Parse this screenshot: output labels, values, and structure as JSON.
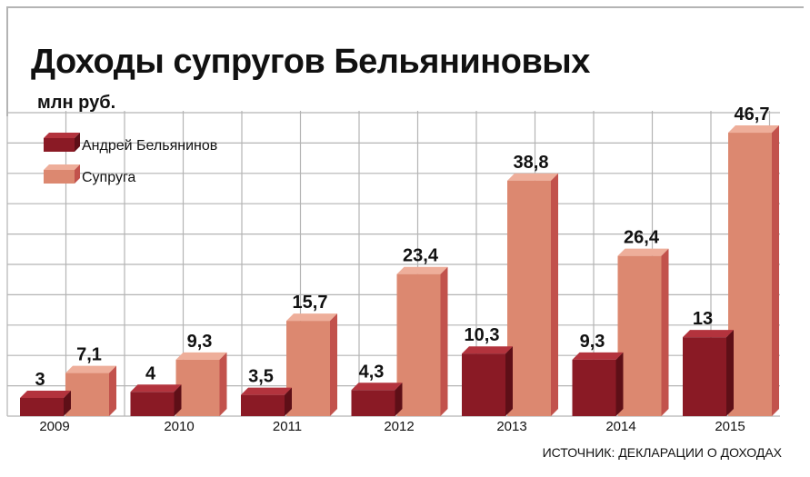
{
  "chart_data": {
    "type": "bar",
    "title": "Доходы супругов Бельяниновых",
    "unit_label": "млн руб.",
    "source": "ИСТОЧНИК: ДЕКЛАРАЦИИ О ДОХОДАХ",
    "categories": [
      "2009",
      "2010",
      "2011",
      "2012",
      "2013",
      "2014",
      "2015"
    ],
    "series": [
      {
        "name": "Андрей Бельянинов",
        "values": [
          3,
          4,
          3.5,
          4.3,
          10.3,
          9.3,
          13
        ],
        "labels": [
          "3",
          "4",
          "3,5",
          "4,3",
          "10,3",
          "9,3",
          "13"
        ],
        "color": "#8a1a25",
        "top_color": "#b3333d",
        "side_color": "#5e0f17"
      },
      {
        "name": "Супруга",
        "values": [
          7.1,
          9.3,
          15.7,
          23.4,
          38.8,
          26.4,
          46.7
        ],
        "labels": [
          "7,1",
          "9,3",
          "15,7",
          "23,4",
          "38,8",
          "26,4",
          "46,7"
        ],
        "color": "#dc8870",
        "top_color": "#eeae9a",
        "side_color": "#c2524c"
      }
    ],
    "ylim": [
      0,
      50
    ],
    "grid": true,
    "legend_position": "top-left",
    "background_color": "#ffffff",
    "grid_color": "#b4b4b4"
  }
}
